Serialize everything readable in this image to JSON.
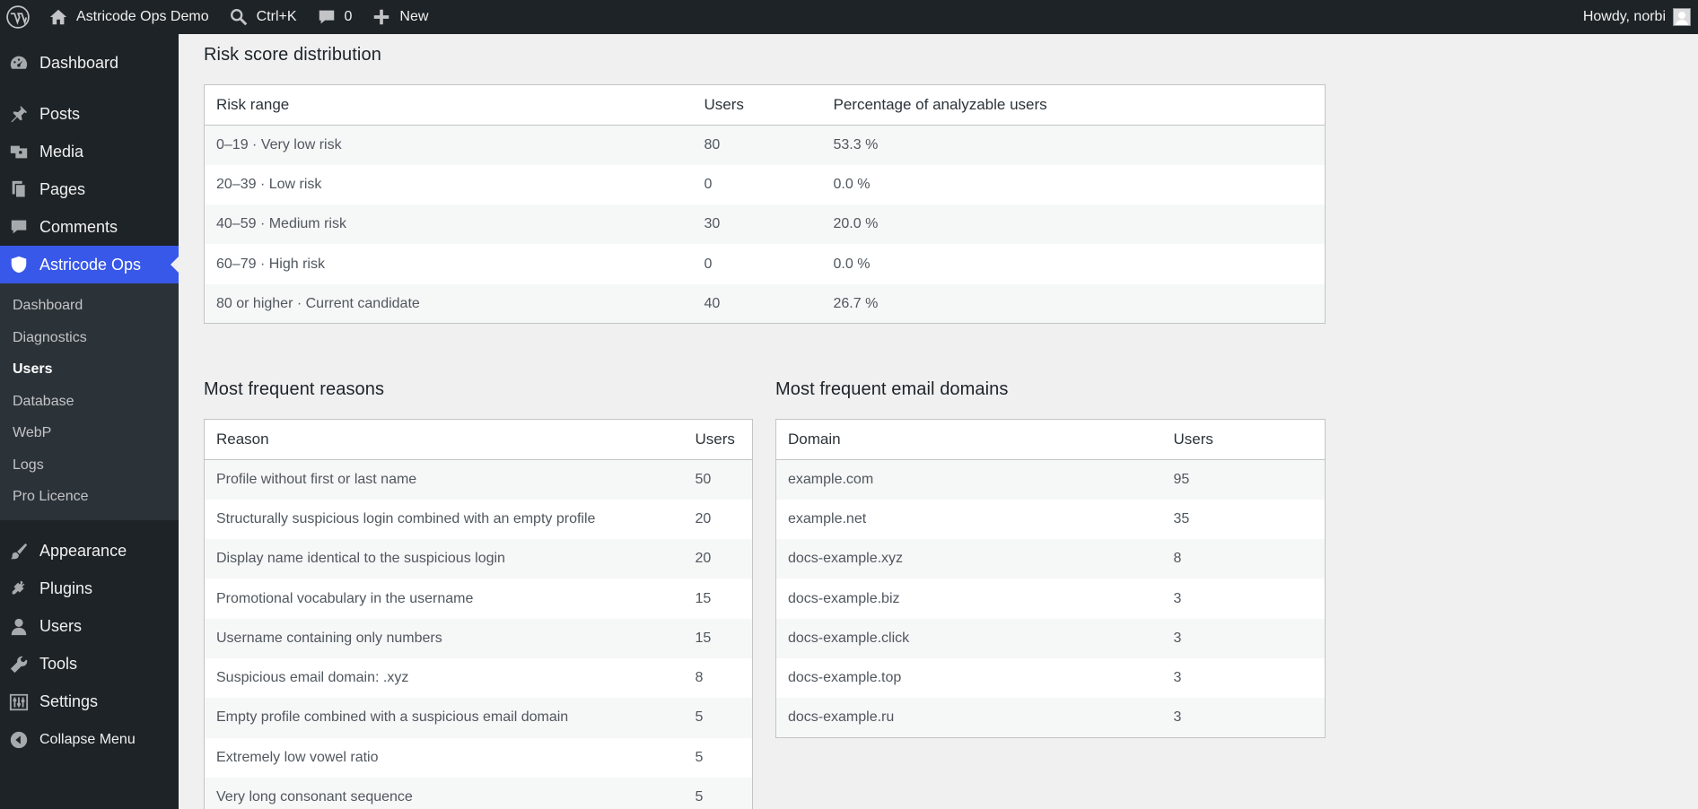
{
  "adminbar": {
    "site_name": "Astricode Ops Demo",
    "search_shortcut": "Ctrl+K",
    "comments_count": "0",
    "new_label": "New",
    "howdy": "Howdy, norbi"
  },
  "sidebar": {
    "items_top": [
      {
        "label": "Dashboard",
        "icon": "dashboard-icon"
      },
      {
        "label": "Posts",
        "icon": "pin-icon"
      },
      {
        "label": "Media",
        "icon": "media-icon"
      },
      {
        "label": "Pages",
        "icon": "pages-icon"
      },
      {
        "label": "Comments",
        "icon": "comment-icon"
      },
      {
        "label": "Astricode Ops",
        "icon": "shield-icon"
      }
    ],
    "submenu": [
      {
        "label": "Dashboard"
      },
      {
        "label": "Diagnostics"
      },
      {
        "label": "Users"
      },
      {
        "label": "Database"
      },
      {
        "label": "WebP"
      },
      {
        "label": "Logs"
      },
      {
        "label": "Pro Licence"
      }
    ],
    "items_bottom": [
      {
        "label": "Appearance",
        "icon": "brush-icon"
      },
      {
        "label": "Plugins",
        "icon": "plugin-icon"
      },
      {
        "label": "Users",
        "icon": "user-icon"
      },
      {
        "label": "Tools",
        "icon": "wrench-icon"
      },
      {
        "label": "Settings",
        "icon": "settings-icon"
      },
      {
        "label": "Collapse Menu",
        "icon": "collapse-icon"
      }
    ]
  },
  "risk": {
    "title": "Risk score distribution",
    "headers": [
      "Risk range",
      "Users",
      "Percentage of analyzable users"
    ],
    "rows": [
      [
        "0–19 · Very low risk",
        "80",
        "53.3 %"
      ],
      [
        "20–39 · Low risk",
        "0",
        "0.0 %"
      ],
      [
        "40–59 · Medium risk",
        "30",
        "20.0 %"
      ],
      [
        "60–79 · High risk",
        "0",
        "0.0 %"
      ],
      [
        "80 or higher · Current candidate",
        "40",
        "26.7 %"
      ]
    ]
  },
  "reasons": {
    "title": "Most frequent reasons",
    "headers": [
      "Reason",
      "Users"
    ],
    "rows": [
      [
        "Profile without first or last name",
        "50"
      ],
      [
        "Structurally suspicious login combined with an empty profile",
        "20"
      ],
      [
        "Display name identical to the suspicious login",
        "20"
      ],
      [
        "Promotional vocabulary in the username",
        "15"
      ],
      [
        "Username containing only numbers",
        "15"
      ],
      [
        "Suspicious email domain: .xyz",
        "8"
      ],
      [
        "Empty profile combined with a suspicious email domain",
        "5"
      ],
      [
        "Extremely low vowel ratio",
        "5"
      ],
      [
        "Very long consonant sequence",
        "5"
      ]
    ]
  },
  "domains": {
    "title": "Most frequent email domains",
    "headers": [
      "Domain",
      "Users"
    ],
    "rows": [
      [
        "example.com",
        "95"
      ],
      [
        "example.net",
        "35"
      ],
      [
        "docs-example.xyz",
        "8"
      ],
      [
        "docs-example.biz",
        "3"
      ],
      [
        "docs-example.click",
        "3"
      ],
      [
        "docs-example.top",
        "3"
      ],
      [
        "docs-example.ru",
        "3"
      ]
    ]
  }
}
